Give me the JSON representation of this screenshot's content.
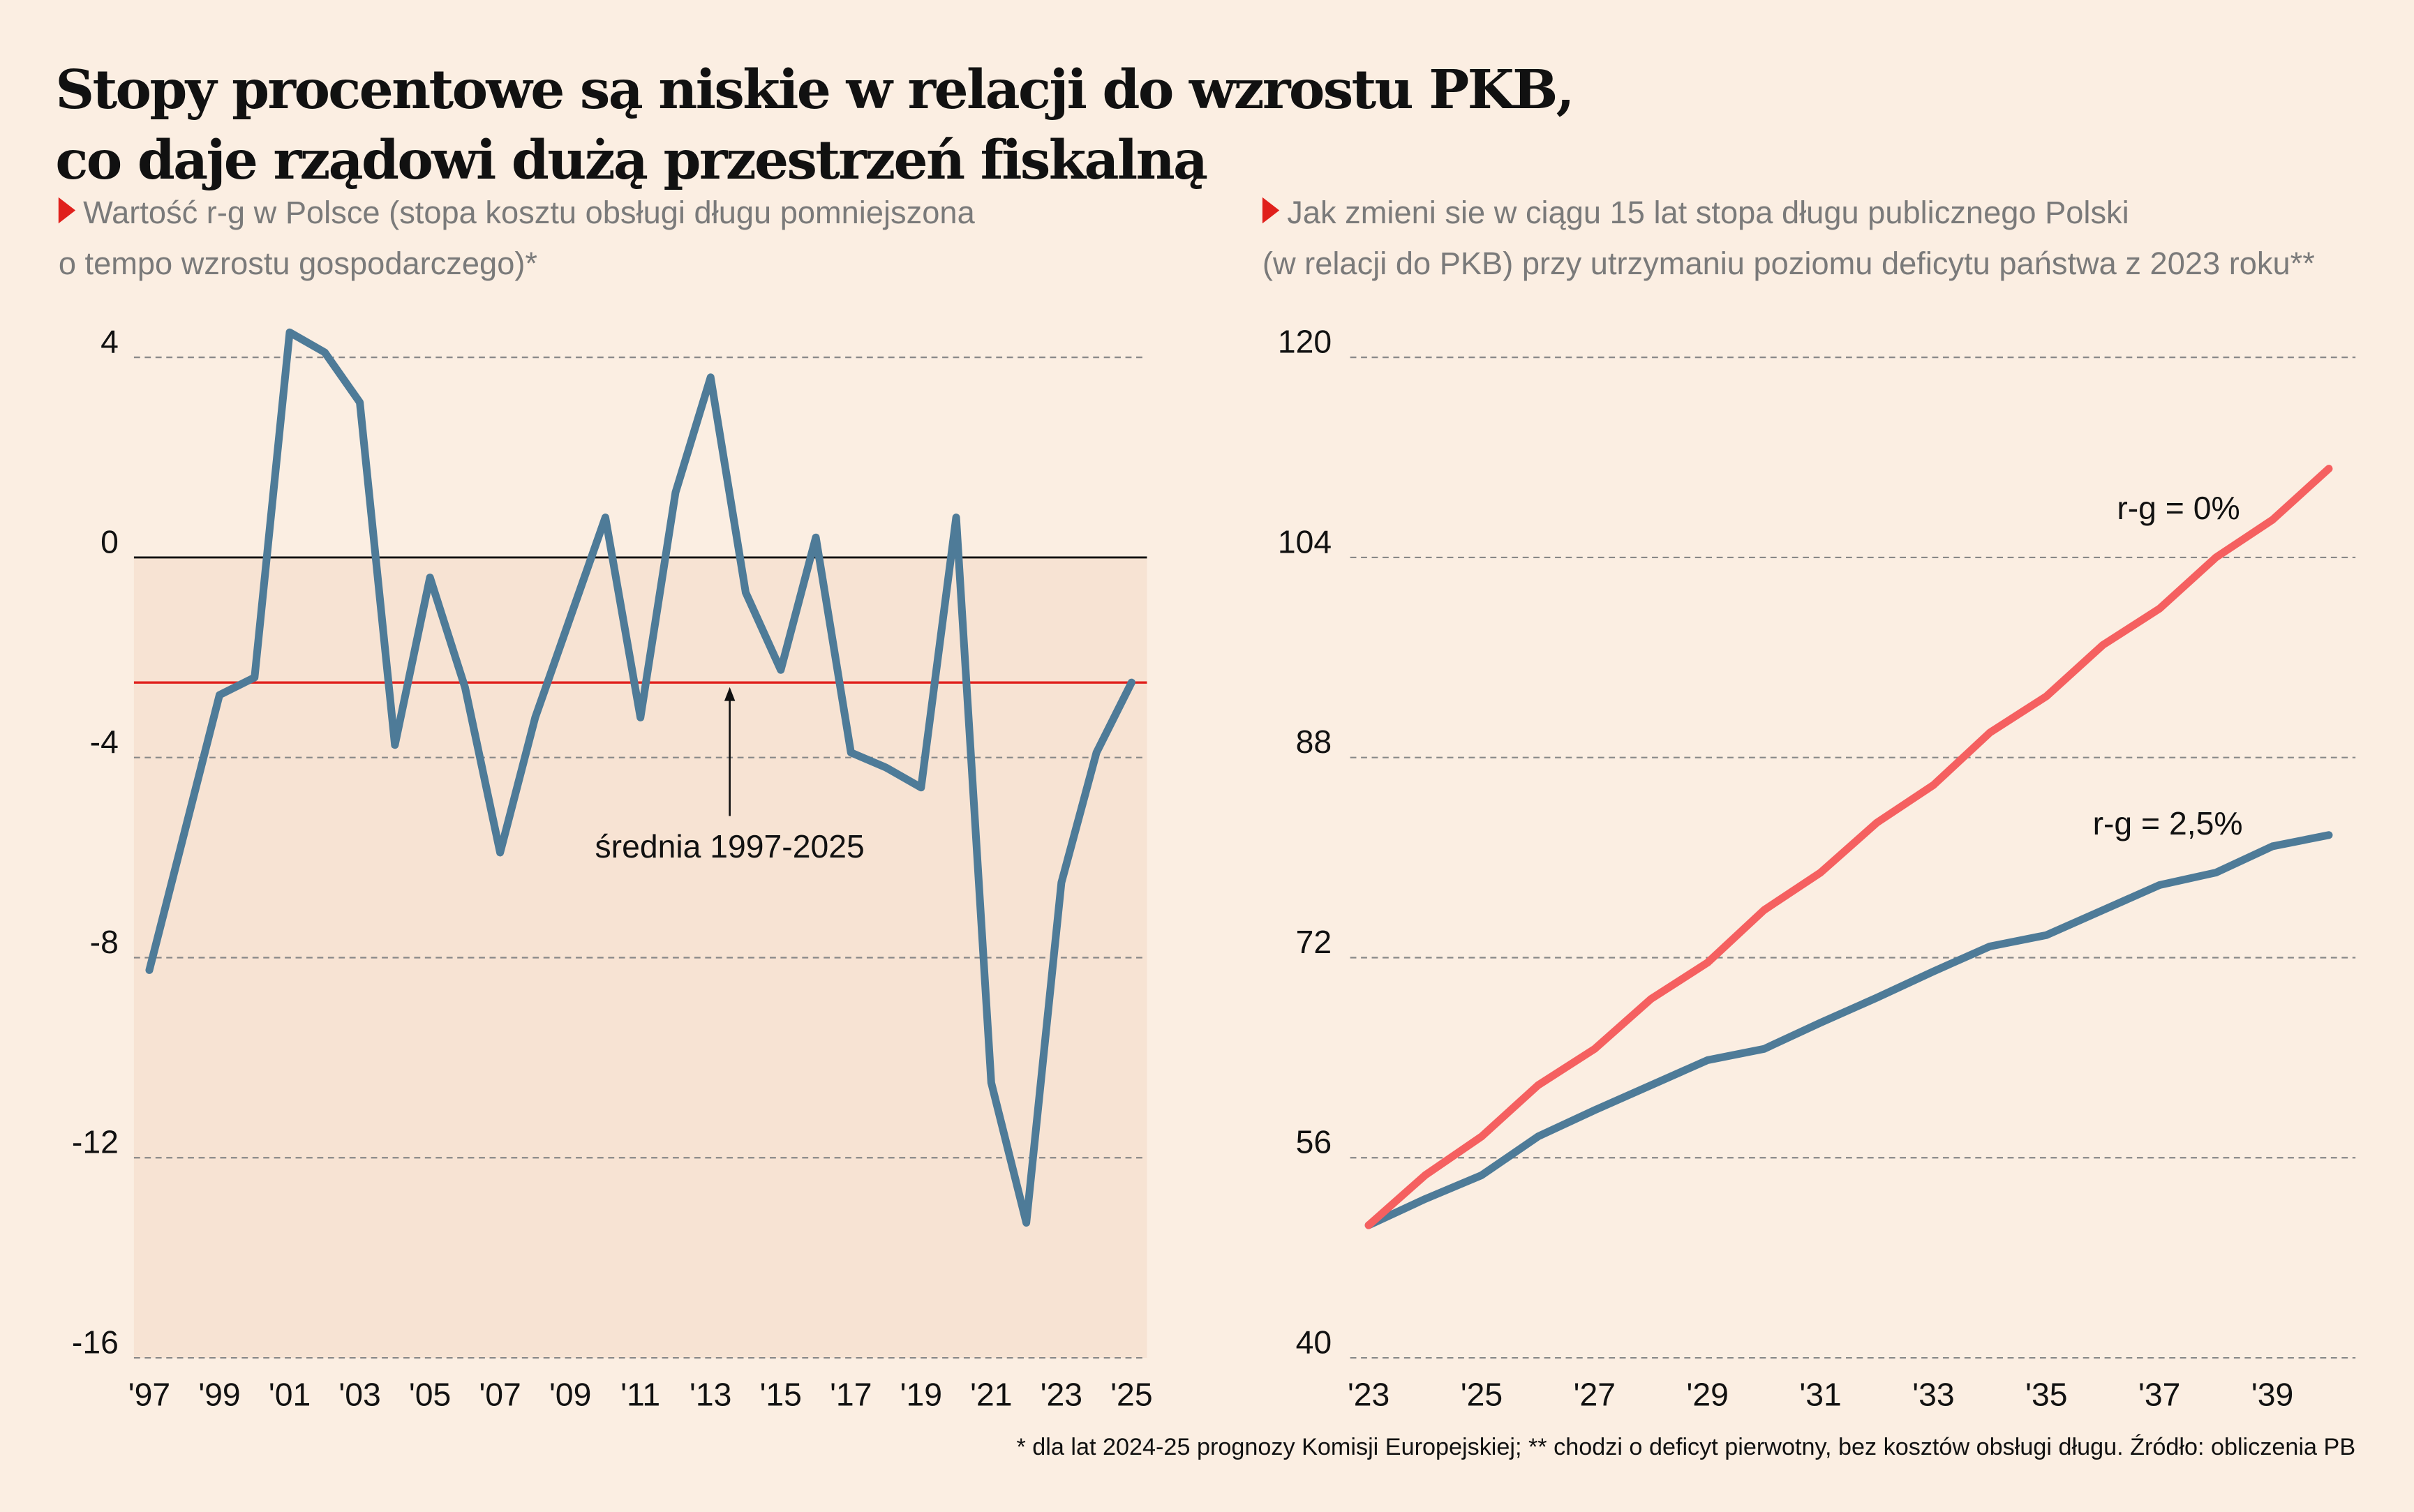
{
  "title_line1": "Stopy procentowe są niskie w relacji do wzrostu PKB,",
  "title_line2": "co daje rządowi dużą przestrzeń fiskalną",
  "footnote": "* dla lat 2024-25 prognozy Komisji Europejskiej; ** chodzi o deficyt pierwotny, bez kosztów obsługi długu. Źródło: obliczenia PB",
  "colors": {
    "background": "#fbeee2",
    "shade": "#f7e3d3",
    "blue": "#4e7b98",
    "red": "#f56060",
    "mean_line": "#e0201c",
    "marker": "#e0201c"
  },
  "chart_data": [
    {
      "type": "line",
      "subtitle_line1": "Wartość r-g w Polsce (stopa kosztu obsługi długu pomniejszona",
      "subtitle_line2": "o tempo wzrostu gospodarczego)*",
      "ylim": [
        -16,
        4
      ],
      "yticks": [
        "4",
        "0",
        "-4",
        "-8",
        "-12",
        "-16"
      ],
      "ytick_values": [
        4,
        0,
        -4,
        -8,
        -12,
        -16
      ],
      "xticks": [
        "'97",
        "'99",
        "'01",
        "'03",
        "'05",
        "'07",
        "'09",
        "'11",
        "'13",
        "'15",
        "'17",
        "'19",
        "'21",
        "'23",
        "'25"
      ],
      "grid": true,
      "x": [
        1997,
        1998,
        1999,
        2000,
        2001,
        2002,
        2003,
        2004,
        2005,
        2006,
        2007,
        2008,
        2009,
        2010,
        2011,
        2012,
        2013,
        2014,
        2015,
        2016,
        2017,
        2018,
        2019,
        2020,
        2021,
        2022,
        2023,
        2024,
        2025
      ],
      "series": [
        {
          "values": [
            -8.25,
            -5.5,
            -2.75,
            -2.4,
            4.5,
            4.1,
            3.1,
            -3.75,
            -0.4,
            -2.6,
            -5.9,
            -3.2,
            -1.2,
            0.8,
            -3.2,
            1.3,
            3.6,
            -0.7,
            -2.25,
            0.4,
            -3.9,
            -4.2,
            -4.6,
            0.8,
            -10.5,
            -13.3,
            -6.5,
            -3.9,
            -2.5
          ]
        }
      ],
      "mean": {
        "value": -2.5,
        "label": "średnia 1997-2025"
      }
    },
    {
      "type": "line",
      "subtitle_line1": "Jak zmieni sie w ciągu 15 lat stopa długu publicznego Polski",
      "subtitle_line2": "(w relacji do PKB) przy utrzymaniu poziomu deficytu państwa z 2023 roku**",
      "ylim": [
        40,
        120
      ],
      "yticks": [
        "120",
        "104",
        "88",
        "72",
        "56",
        "40"
      ],
      "ytick_values": [
        120,
        104,
        88,
        72,
        56,
        40
      ],
      "xticks": [
        "'23",
        "'25",
        "'27",
        "'29",
        "'31",
        "'33",
        "'35",
        "'37",
        "'39"
      ],
      "grid": true,
      "x": [
        2023,
        2024,
        2025,
        2026,
        2027,
        2028,
        2029,
        2030,
        2031,
        2032,
        2033,
        2034,
        2035,
        2036,
        2037,
        2038,
        2039,
        2040
      ],
      "series": [
        {
          "name": "r-g = 0%",
          "color": "#f56060",
          "values": [
            50.6,
            54.6,
            57.7,
            61.8,
            64.7,
            68.7,
            71.6,
            75.8,
            78.8,
            82.8,
            85.8,
            90.0,
            92.9,
            97.0,
            99.9,
            104.0,
            107.0,
            111.1
          ]
        },
        {
          "name": "r-g = 2,5%",
          "color": "#4e7b98",
          "values": [
            50.6,
            52.7,
            54.6,
            57.7,
            59.8,
            61.8,
            63.8,
            64.7,
            66.8,
            68.8,
            70.9,
            72.9,
            73.8,
            75.8,
            77.8,
            78.8,
            80.9,
            81.8
          ]
        }
      ]
    }
  ]
}
